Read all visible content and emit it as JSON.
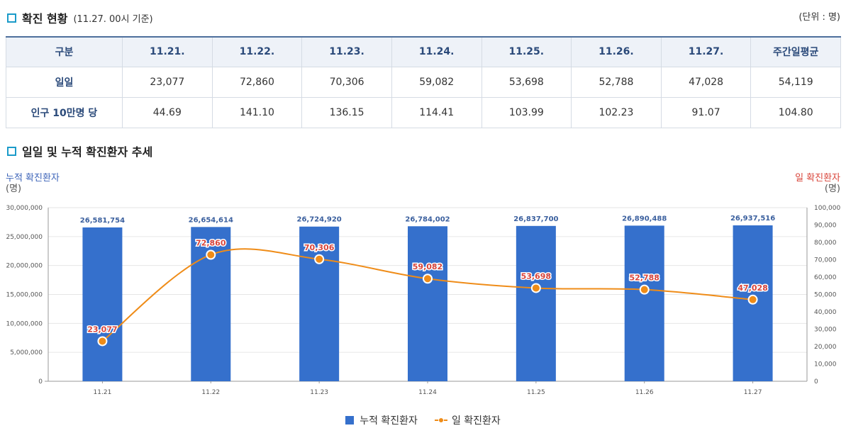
{
  "section1": {
    "title": "확진 현황",
    "subtitle": "(11.27. 00시 기준)",
    "unit": "(단위 : 명)"
  },
  "table": {
    "headers": [
      "구분",
      "11.21.",
      "11.22.",
      "11.23.",
      "11.24.",
      "11.25.",
      "11.26.",
      "11.27.",
      "주간일평균"
    ],
    "rows": [
      {
        "label": "일일",
        "cells": [
          "23,077",
          "72,860",
          "70,306",
          "59,082",
          "53,698",
          "52,788",
          "47,028",
          "54,119"
        ]
      },
      {
        "label": "인구 10만명 당",
        "cells": [
          "44.69",
          "141.10",
          "136.15",
          "114.41",
          "103.99",
          "102.23",
          "91.07",
          "104.80"
        ]
      }
    ]
  },
  "section2": {
    "title": "일일 및 누적 확진환자 추세"
  },
  "chart_data": {
    "type": "bar",
    "categories": [
      "11.21",
      "11.22",
      "11.23",
      "11.24",
      "11.25",
      "11.26",
      "11.27"
    ],
    "series": [
      {
        "name": "누적 확진환자",
        "type": "bar",
        "axis": "left",
        "color": "#3570cc",
        "values": [
          26581754,
          26654614,
          26724920,
          26784002,
          26837700,
          26890488,
          26937516
        ],
        "labels": [
          "26,581,754",
          "26,654,614",
          "26,724,920",
          "26,784,002",
          "26,837,700",
          "26,890,488",
          "26,937,516"
        ]
      },
      {
        "name": "일 확진환자",
        "type": "line",
        "axis": "right",
        "color": "#ef8c18",
        "values": [
          23077,
          72860,
          70306,
          59082,
          53698,
          52788,
          47028
        ],
        "labels": [
          "23,077",
          "72,860",
          "70,306",
          "59,082",
          "53,698",
          "52,788",
          "47,028"
        ]
      }
    ],
    "y_left": {
      "title": "누적 확진환자",
      "unit": "(명)",
      "min": 0,
      "max": 30000000,
      "ticks": [
        "0",
        "5,000,000",
        "10,000,000",
        "15,000,000",
        "20,000,000",
        "25,000,000",
        "30,000,000"
      ],
      "color": "#3c63b8"
    },
    "y_right": {
      "title": "일 확진환자",
      "unit": "(명)",
      "min": 0,
      "max": 100000,
      "ticks": [
        "0",
        "10,000",
        "20,000",
        "30,000",
        "40,000",
        "50,000",
        "60,000",
        "70,000",
        "80,000",
        "90,000",
        "100,000"
      ],
      "color": "#d9443a"
    },
    "grid": true,
    "legend_position": "bottom-center"
  }
}
